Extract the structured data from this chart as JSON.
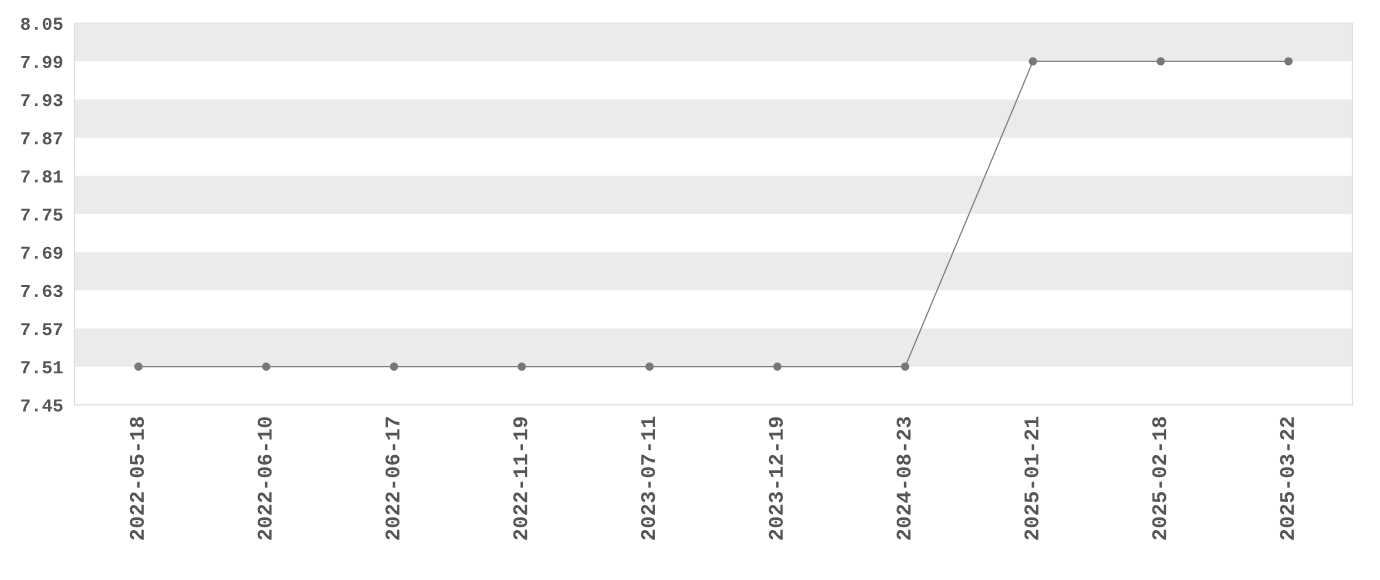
{
  "chart_data": {
    "type": "line",
    "categories": [
      "2022-05-18",
      "2022-06-10",
      "2022-06-17",
      "2022-11-19",
      "2023-07-11",
      "2023-12-19",
      "2024-08-23",
      "2025-01-21",
      "2025-02-18",
      "2025-03-22"
    ],
    "series": [
      {
        "color": "#808080",
        "values": [
          7.51,
          7.51,
          7.51,
          7.51,
          7.51,
          7.51,
          7.51,
          7.99,
          7.99,
          7.99
        ]
      }
    ],
    "marker": "circle",
    "line_style": "solid",
    "ylim": [
      7.45,
      8.05
    ],
    "yticks": [
      7.45,
      7.51,
      7.57,
      7.63,
      7.69,
      7.75,
      7.81,
      7.87,
      7.93,
      7.99,
      8.05
    ],
    "bands": [
      {
        "axis": "y",
        "from": 7.99,
        "to": 8.05,
        "color": "#ebebeb"
      },
      {
        "axis": "y",
        "from": 7.87,
        "to": 7.93,
        "color": "#ebebeb"
      },
      {
        "axis": "y",
        "from": 7.75,
        "to": 7.81,
        "color": "#ebebeb"
      },
      {
        "axis": "y",
        "from": 7.63,
        "to": 7.69,
        "color": "#ebebeb"
      },
      {
        "axis": "y",
        "from": 7.51,
        "to": 7.57,
        "color": "#ebebeb"
      }
    ],
    "grid": false,
    "legend": false
  }
}
